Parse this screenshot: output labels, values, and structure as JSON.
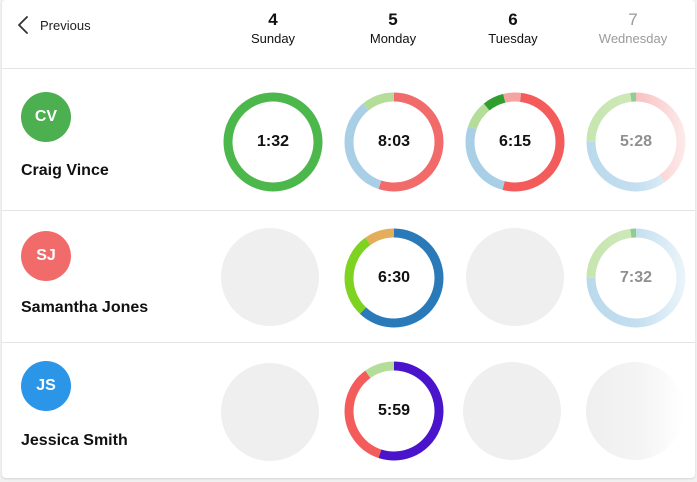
{
  "nav": {
    "previous_label": "Previous",
    "chevron_icon": "chevron-left-icon"
  },
  "days": [
    {
      "number": "4",
      "name": "Sunday"
    },
    {
      "number": "5",
      "name": "Monday"
    },
    {
      "number": "6",
      "name": "Tuesday"
    },
    {
      "number": "7",
      "name": "Wednesday"
    }
  ],
  "people": [
    {
      "initials": "CV",
      "name": "Craig Vince",
      "avatar_color": "#4caf50",
      "days": [
        {
          "time": "1:32",
          "segments": [
            {
              "fraction": 1.0,
              "color": "#4cb84c"
            }
          ]
        },
        {
          "time": "8:03",
          "segments": [
            {
              "fraction": 0.55,
              "color": "#f26b6b"
            },
            {
              "fraction": 0.34,
              "color": "#a9cfe6"
            },
            {
              "fraction": 0.11,
              "color": "#b5dd9a"
            }
          ]
        },
        {
          "time": "6:15",
          "segments": [
            {
              "fraction": 0.02,
              "color": "#f5a3a3"
            },
            {
              "fraction": 0.52,
              "color": "#f45b5b"
            },
            {
              "fraction": 0.26,
              "color": "#a9cfe6"
            },
            {
              "fraction": 0.09,
              "color": "#b5dd9a"
            },
            {
              "fraction": 0.07,
              "color": "#2f9e2f"
            },
            {
              "fraction": 0.04,
              "color": "#f5a3a3"
            }
          ]
        },
        {
          "time": "5:28",
          "segments": [
            {
              "fraction": 0.4,
              "color": "#f7b6b6"
            },
            {
              "fraction": 0.35,
              "color": "#b9d9ec"
            },
            {
              "fraction": 0.23,
              "color": "#c6e5ae"
            },
            {
              "fraction": 0.02,
              "color": "#7cc67c"
            }
          ]
        }
      ]
    },
    {
      "initials": "SJ",
      "name": "Samantha Jones",
      "avatar_color": "#f26b6b",
      "days": [
        null,
        {
          "time": "6:30",
          "segments": [
            {
              "fraction": 0.62,
              "color": "#2a7ab9"
            },
            {
              "fraction": 0.28,
              "color": "#7ed321"
            },
            {
              "fraction": 0.1,
              "color": "#e3ad5c"
            }
          ]
        },
        null,
        {
          "time": "7:32",
          "segments": [
            {
              "fraction": 0.4,
              "color": "#b9d9ec"
            },
            {
              "fraction": 0.35,
              "color": "#b9d9ec"
            },
            {
              "fraction": 0.23,
              "color": "#c6e5ae"
            },
            {
              "fraction": 0.02,
              "color": "#7cc67c"
            }
          ]
        }
      ]
    },
    {
      "initials": "JS",
      "name": "Jessica Smith",
      "avatar_color": "#2b95e8",
      "days": [
        null,
        {
          "time": "5:59",
          "segments": [
            {
              "fraction": 0.55,
              "color": "#4a14cc"
            },
            {
              "fraction": 0.35,
              "color": "#f45b5b"
            },
            {
              "fraction": 0.1,
              "color": "#b5dd9a"
            }
          ]
        },
        null,
        null
      ]
    }
  ]
}
